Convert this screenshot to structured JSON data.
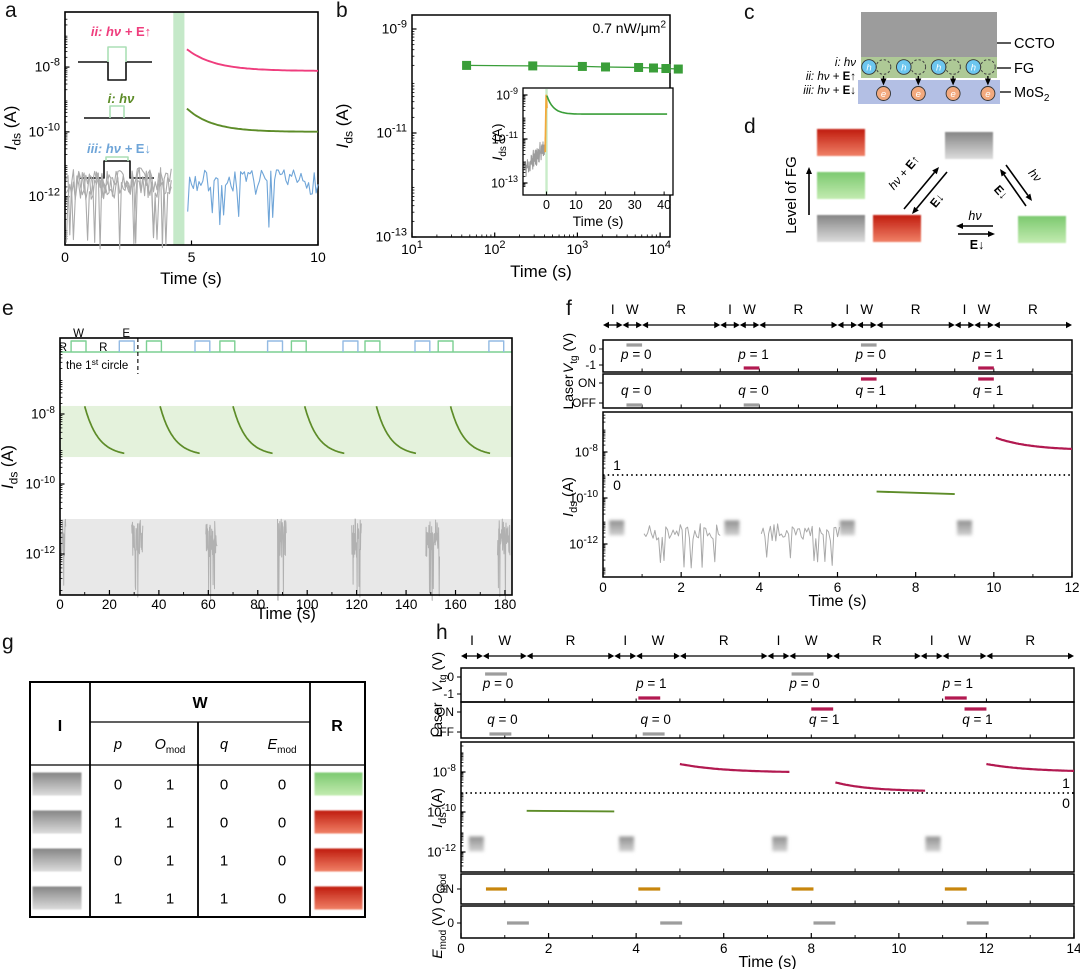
{
  "panel_labels": {
    "a": "a",
    "b": "b",
    "c": "c",
    "d": "d",
    "e": "e",
    "f": "f",
    "g": "g",
    "h": "h"
  },
  "colors": {
    "pink": "#ef3d7d",
    "olive": "#5d8c28",
    "blue_curve": "#6fa5d8",
    "gray_noise": "#ababab",
    "mint_band": "#c5e9c9",
    "mint_band_e": "#e4f2dc",
    "gray_band_e": "#e8e8e8",
    "pulse_green": "#7ccf92",
    "pulse_blue": "#93bae3",
    "pale_pulse": "#abdfb6",
    "green_marker": "#3a9e39",
    "orange_spike": "#f2a93b",
    "crimson": "#b21950",
    "amber": "#c8860d",
    "bar_gray": "#9d9d9d",
    "ccto_gray": "#9c9c9c",
    "fg_green": "#aec996",
    "mos2_blue": "#b3bfe4",
    "h_blue": "#6cc6ef",
    "e_orange": "#f2a97e"
  },
  "panel_a": {
    "xlabel": "Time (s)",
    "ylabel": {
      "pre": "I",
      "sub": "ds",
      "post": " (A)"
    },
    "x_ticks": [
      0,
      5,
      10
    ],
    "y_ticks_exp": [
      -12,
      -10,
      -8
    ],
    "legend": [
      {
        "label": "ii: hν + E↑",
        "color": "#ef3d7d"
      },
      {
        "label": "i: hν",
        "color": "#5d8c28"
      },
      {
        "label": "iii: hν + E↓",
        "color": "#6fa5d8"
      }
    ],
    "chart_data": {
      "type": "line",
      "xlim": [
        0,
        10
      ],
      "ylim_exp": [
        -13.5,
        -6.3
      ],
      "light_band": {
        "x0": 4.28,
        "x1": 4.72
      },
      "series": [
        {
          "name": "ii: hν + E↑",
          "color": "#ef3d7d",
          "decay": {
            "t0": 4.82,
            "t1": 10,
            "base_exp": -8.12,
            "amp": 0.67,
            "tau": 1.1
          }
        },
        {
          "name": "i: hν",
          "color": "#5d8c28",
          "decay": {
            "t0": 4.82,
            "t1": 10,
            "base_exp": -10.0,
            "amp": 0.72,
            "tau": 1.0
          }
        },
        {
          "name": "iii: hν + E↓",
          "color": "#6fa5d8",
          "noise": {
            "t0": 4.85,
            "t1": 10,
            "base_exp": -11.55,
            "amp": 0.38,
            "dip_exp": -12.7,
            "seed": 7,
            "n": 70
          }
        },
        {
          "name": "dark",
          "color": "#ababab",
          "noise": {
            "t0": 0.05,
            "t1": 4.2,
            "base_exp": -11.6,
            "amp": 0.5,
            "dip_exp": -13.4,
            "seed": 3,
            "n": 60
          },
          "traces": 3
        }
      ]
    }
  },
  "panel_b": {
    "xlabel": "Time (s)",
    "ylabel": {
      "pre": "I",
      "sub": "ds",
      "post": " (A)"
    },
    "power_label": {
      "pre": "0.7 nW/μm",
      "sup": "2"
    },
    "x_ticks_exp": [
      1,
      2,
      3,
      4
    ],
    "y_ticks_exp": [
      -9,
      -11,
      -13
    ],
    "chart_data": {
      "type": "scatter",
      "marker": "square",
      "color": "#3a9e39",
      "points_log": [
        [
          1.66,
          -9.7
        ],
        [
          2.46,
          -9.71
        ],
        [
          3.06,
          -9.72
        ],
        [
          3.34,
          -9.73
        ],
        [
          3.74,
          -9.74
        ],
        [
          3.92,
          -9.75
        ],
        [
          4.07,
          -9.76
        ],
        [
          4.22,
          -9.77
        ]
      ]
    },
    "inset": {
      "xlabel": "Time (s)",
      "ylabel": {
        "pre": "I",
        "sub": "ds",
        "post": " (A)"
      },
      "x_ticks": [
        0,
        10,
        20,
        30,
        40
      ],
      "xlim": [
        -8,
        43
      ],
      "y_ticks_exp": [
        -9,
        -11,
        -13
      ],
      "chart_data": {
        "noise": {
          "t0": -7.5,
          "t1": -0.3,
          "base_exp": -12.4,
          "trend": 1.1,
          "amp": 0.45,
          "seed": 11,
          "n": 80
        },
        "spike": {
          "x": -0.1,
          "top_exp": -9.02,
          "color": "#f2a93b"
        },
        "vline": {
          "x": 0,
          "color": "#c9ecc9"
        },
        "decay": {
          "t0": 0.12,
          "t1": 41,
          "base_exp": -9.87,
          "amp": 0.84,
          "tau": 2.2,
          "color": "#3a9e39"
        }
      }
    }
  },
  "panel_c": {
    "layer_labels": [
      {
        "pre": "CCTO"
      },
      {
        "pre": "FG"
      },
      {
        "pre": "MoS",
        "sub": "2"
      }
    ],
    "left_labels": [
      "i: hν",
      "ii: hν + E↑",
      "iii: hν + E↓"
    ],
    "hole_label": "h",
    "electron_label": "e",
    "n_pairs": 4
  },
  "panel_d": {
    "axis_label": "Level of FG",
    "left_pair": {
      "up": "hν + E↑",
      "down": "E↓"
    },
    "right_pair": {
      "up": "hν",
      "down": "E↓"
    },
    "mid_pair": {
      "left": "hν",
      "right": "E↓"
    },
    "stack_order": [
      "red",
      "green",
      "gray"
    ],
    "triangle": {
      "top": "gray",
      "bottom_left": "red",
      "bottom_right": "green"
    }
  },
  "panel_e": {
    "xlabel": "Time (s)",
    "ylabel": {
      "pre": "I",
      "sub": "ds",
      "post": " (A)"
    },
    "x_ticks": [
      0,
      20,
      40,
      60,
      80,
      100,
      120,
      140,
      160,
      180
    ],
    "y_ticks_exp": [
      -8,
      -10,
      -12
    ],
    "phase_labels": [
      "R",
      "W",
      "R",
      "E"
    ],
    "annotation": {
      "pre": "the 1",
      "sup": "st",
      "post": " circle"
    },
    "chart_data": {
      "xlim": [
        0,
        183
      ],
      "green_pulses": [
        4.5,
        35,
        64.7,
        93.6,
        123.4,
        153
      ],
      "blue_pulses": [
        24,
        54.6,
        84,
        114.5,
        143.6,
        173.5
      ],
      "pulse_width": 6,
      "decays": {
        "starts": [
          10,
          40.5,
          70,
          99,
          128,
          158
        ],
        "dur": 16,
        "base_exp": -9.2,
        "amp": 1.42,
        "tau": 5.5
      },
      "noise_bursts": [
        [
          0,
          2.3
        ],
        [
          29,
          33.5
        ],
        [
          59,
          63.5
        ],
        [
          88,
          91.5
        ],
        [
          118,
          122
        ],
        [
          148,
          153.5
        ],
        [
          177,
          182
        ]
      ],
      "green_band_exp": [
        -9.23,
        -7.77
      ],
      "gray_band_top_exp": -11,
      "dashed_x": 31.5
    }
  },
  "panel_f": {
    "xlabel": "Time (s)",
    "seg_labels": [
      "I",
      "W",
      "R"
    ],
    "ylabel_vtg": {
      "pre": "V",
      "sub": "tg",
      "post": " (V)"
    },
    "ylabel_laser": "Laser",
    "ylabel_ids": {
      "pre": "I",
      "sub": "ds",
      "post": " (A)"
    },
    "x_ticks": [
      0,
      2,
      4,
      6,
      8,
      10,
      12
    ],
    "chart_data": {
      "xlim": [
        0,
        12
      ],
      "cycle": 3,
      "n_cycles": 4,
      "segments": {
        "I": [
          0,
          0.5
        ],
        "W": [
          0.5,
          1
        ],
        "R": [
          1,
          3
        ]
      },
      "vtg": {
        "tick_hi": "0",
        "tick_lo": "-1",
        "items": [
          {
            "text": "p = 0",
            "level": "hi",
            "bar": [
              0.6,
              1.0
            ],
            "color": "gray"
          },
          {
            "text": "p = 1",
            "level": "lo",
            "bar": [
              3.6,
              4.0
            ],
            "color": "crimson"
          },
          {
            "text": "p = 0",
            "level": "hi",
            "bar": [
              6.6,
              7.0
            ],
            "color": "gray"
          },
          {
            "text": "p = 1",
            "level": "lo",
            "bar": [
              9.6,
              10.0
            ],
            "color": "crimson"
          }
        ]
      },
      "laser": {
        "tick_hi": "ON",
        "tick_lo": "OFF",
        "items": [
          {
            "text": "q = 0",
            "level": "lo",
            "bar": [
              0.6,
              1.0
            ],
            "color": "gray"
          },
          {
            "text": "q = 0",
            "level": "lo",
            "bar": [
              3.6,
              4.0
            ],
            "color": "gray"
          },
          {
            "text": "q = 1",
            "level": "hi",
            "bar": [
              6.6,
              7.0
            ],
            "color": "crimson"
          },
          {
            "text": "q = 1",
            "level": "hi",
            "bar": [
              9.6,
              10.0
            ],
            "color": "crimson"
          }
        ]
      },
      "ids": {
        "y_ticks_exp": [
          -8,
          -10,
          -12
        ],
        "threshold_exp": -9.0,
        "threshold_labels": [
          "1",
          "0"
        ],
        "threshold_label_side": "left",
        "squares": [
          0.35,
          3.3,
          6.25,
          9.25
        ],
        "square_exp": -11.3,
        "noise_ranges": [
          [
            1.05,
            3.0
          ],
          [
            4.05,
            6.05
          ]
        ],
        "noise_base_exp": -11.5,
        "flat_segment": {
          "x": [
            7.0,
            9.0
          ],
          "exp": [
            -9.72,
            -9.83
          ],
          "color": "#5d8c28"
        },
        "decay_segments": [
          {
            "t0": 10.05,
            "t1": 12,
            "base_exp": -7.93,
            "amp": 0.55,
            "tau": 0.9
          }
        ]
      }
    }
  },
  "panel_g": {
    "col_input": "I",
    "col_write": "W",
    "col_read": "R",
    "sub_headers": [
      {
        "pre": "p"
      },
      {
        "pre": "O",
        "sub": "mod"
      },
      {
        "pre": "q"
      },
      {
        "pre": "E",
        "sub": "mod"
      }
    ],
    "rows": [
      {
        "input": "gray",
        "values": [
          "0",
          "1",
          "0",
          "0"
        ],
        "result": "green"
      },
      {
        "input": "gray",
        "values": [
          "1",
          "1",
          "0",
          "0"
        ],
        "result": "red"
      },
      {
        "input": "gray",
        "values": [
          "0",
          "1",
          "1",
          "0"
        ],
        "result": "red"
      },
      {
        "input": "gray",
        "values": [
          "1",
          "1",
          "1",
          "0"
        ],
        "result": "red"
      }
    ]
  },
  "panel_h": {
    "xlabel": "Time (s)",
    "seg_labels": [
      "I",
      "W",
      "R"
    ],
    "ylabel_vtg": {
      "pre": "V",
      "sub": "tg",
      "post": " (V)"
    },
    "ylabel_laser": "Laser",
    "ylabel_ids": {
      "pre": "I",
      "sub": "ds",
      "post": " (A)"
    },
    "ylabel_omod": {
      "pre": "O",
      "sub": "mod"
    },
    "ylabel_emod": {
      "pre": "E",
      "sub": "mod",
      "post": " (V)"
    },
    "x_ticks": [
      0,
      2,
      4,
      6,
      8,
      10,
      12,
      14
    ],
    "chart_data": {
      "xlim": [
        0,
        14
      ],
      "cycle": 3.5,
      "n_cycles": 4,
      "segments": {
        "I": [
          0,
          0.5
        ],
        "W": [
          0.5,
          1.5
        ],
        "R": [
          1.5,
          3.5
        ]
      },
      "vtg": {
        "tick_hi": "0",
        "tick_lo": "-1",
        "items": [
          {
            "text": "p = 0",
            "level": "hi",
            "bar": [
              0.55,
              1.05
            ],
            "color": "gray"
          },
          {
            "text": "p = 1",
            "level": "lo",
            "bar": [
              4.05,
              4.55
            ],
            "color": "crimson"
          },
          {
            "text": "p = 0",
            "level": "hi",
            "bar": [
              7.55,
              8.05
            ],
            "color": "gray"
          },
          {
            "text": "p = 1",
            "level": "lo",
            "bar": [
              11.05,
              11.55
            ],
            "color": "crimson"
          }
        ]
      },
      "laser": {
        "tick_hi": "ON",
        "tick_lo": "OFF",
        "items": [
          {
            "text": "q = 0",
            "level": "lo",
            "bar": [
              0.65,
              1.15
            ],
            "color": "gray"
          },
          {
            "text": "q = 0",
            "level": "lo",
            "bar": [
              4.15,
              4.65
            ],
            "color": "gray"
          },
          {
            "text": "q = 1",
            "level": "hi",
            "bar": [
              8.0,
              8.5
            ],
            "color": "crimson"
          },
          {
            "text": "q = 1",
            "level": "hi",
            "bar": [
              11.5,
              12.0
            ],
            "color": "crimson"
          }
        ]
      },
      "ids": {
        "y_ticks_exp": [
          -8,
          -10,
          -12
        ],
        "threshold_exp": -9.05,
        "threshold_labels": [
          "1",
          "0"
        ],
        "threshold_label_side": "right",
        "squares": [
          0.35,
          3.78,
          7.28,
          10.78
        ],
        "square_exp": -11.6,
        "flat_segment": {
          "x": [
            1.5,
            3.5
          ],
          "exp": [
            -9.94,
            -9.97
          ],
          "color": "#5d8c28"
        },
        "decay_segments": [
          {
            "t0": 5.0,
            "t1": 7.5,
            "base_exp": -8.03,
            "amp": 0.43,
            "tau": 1.0
          },
          {
            "t0": 8.55,
            "t1": 10.6,
            "base_exp": -8.97,
            "amp": 0.45,
            "tau": 0.8
          },
          {
            "t0": 12.0,
            "t1": 14.0,
            "base_exp": -8.0,
            "amp": 0.4,
            "tau": 1.0
          }
        ]
      },
      "omod": {
        "label": "ON",
        "bars": [
          [
            0.57,
            1.05
          ],
          [
            4.05,
            4.55
          ],
          [
            7.55,
            8.05
          ],
          [
            11.05,
            11.55
          ]
        ],
        "color": "#c8860d"
      },
      "emod": {
        "label": "0",
        "bars": [
          [
            1.05,
            1.55
          ],
          [
            4.55,
            5.05
          ],
          [
            8.05,
            8.55
          ],
          [
            11.55,
            12.05
          ]
        ],
        "color": "#9d9d9d"
      }
    }
  }
}
